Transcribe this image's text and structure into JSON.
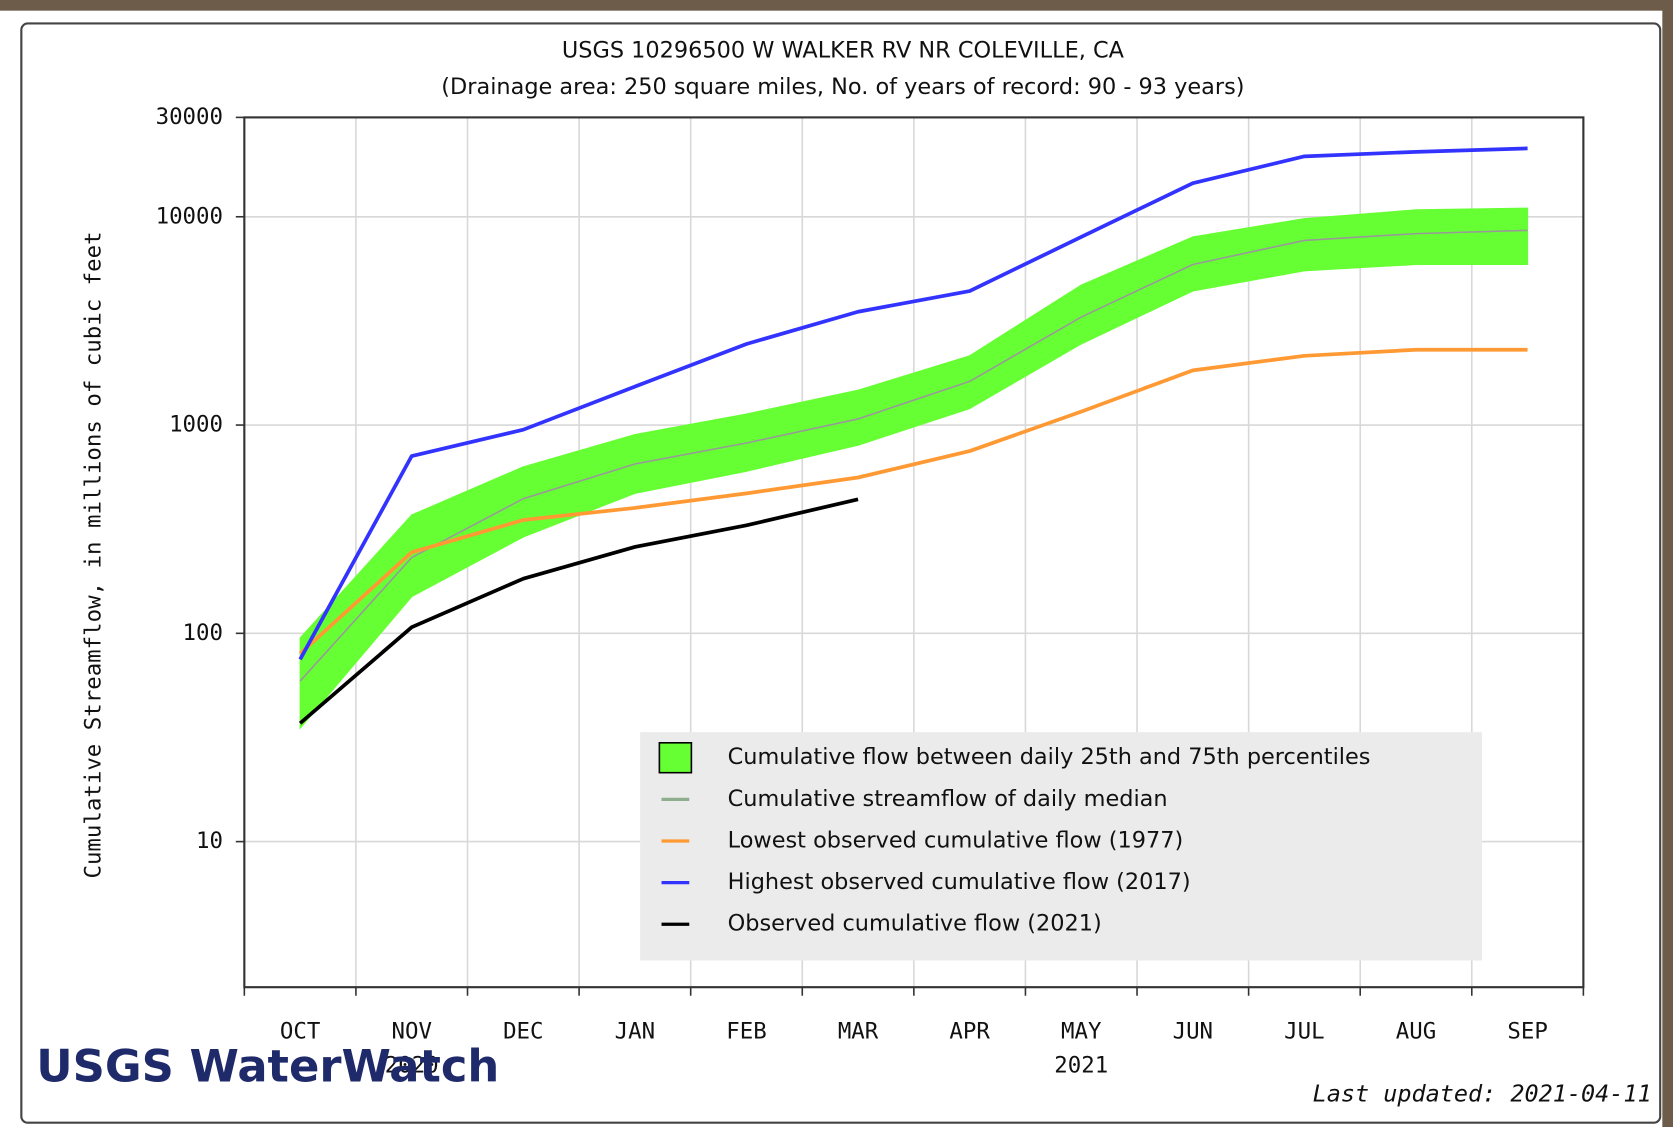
{
  "chart_data": {
    "type": "line",
    "title": "USGS 10296500 W WALKER RV NR COLEVILLE, CA",
    "subtitle": "(Drainage area: 250 square miles, No. of years of record: 90 - 93 years)",
    "y_label": "Cumulative Streamflow, in millions of cubic feet",
    "categories": [
      "OCT",
      "NOV",
      "DEC",
      "JAN",
      "FEB",
      "MAR",
      "APR",
      "MAY",
      "JUN",
      "JUL",
      "AUG",
      "SEP"
    ],
    "year_labels": [
      {
        "label": "2020",
        "month": "NOV"
      },
      {
        "label": "2021",
        "month": "MAY"
      }
    ],
    "log_y": true,
    "ylim": [
      2,
      30000
    ],
    "yticks": [
      10,
      100,
      1000,
      10000,
      30000
    ],
    "grid": true,
    "band": {
      "name": "Cumulative flow between daily 25th and 75th percentiles",
      "color": "#66ff33",
      "lower": [
        35,
        150,
        290,
        470,
        600,
        800,
        1200,
        2450,
        4400,
        5500,
        5900,
        5900
      ],
      "upper": [
        95,
        370,
        630,
        900,
        1130,
        1470,
        2150,
        4700,
        8000,
        9800,
        10800,
        11000
      ]
    },
    "series": [
      {
        "name": "Cumulative streamflow of daily median",
        "color": "#999999",
        "legend_color": "#8fae8f",
        "values": [
          59,
          231,
          443,
          650,
          820,
          1070,
          1620,
          3300,
          5900,
          7700,
          8300,
          8600
        ]
      },
      {
        "name": "Lowest observed cumulative flow (1977)",
        "color": "#ff9933",
        "values": [
          80,
          245,
          350,
          400,
          470,
          560,
          750,
          1160,
          1830,
          2150,
          2300,
          2300
        ]
      },
      {
        "name": "Highest observed cumulative flow (2017)",
        "color": "#3333ff",
        "values": [
          75,
          710,
          950,
          1530,
          2450,
          3500,
          4400,
          8000,
          14500,
          19500,
          20500,
          21300
        ]
      },
      {
        "name": "Observed cumulative flow (2021)",
        "color": "#000000",
        "values": [
          37,
          107,
          183,
          260,
          330,
          440,
          null,
          null,
          null,
          null,
          null,
          null
        ]
      }
    ],
    "logo": "USGS WaterWatch",
    "updated": "Last updated: 2021-04-11"
  }
}
